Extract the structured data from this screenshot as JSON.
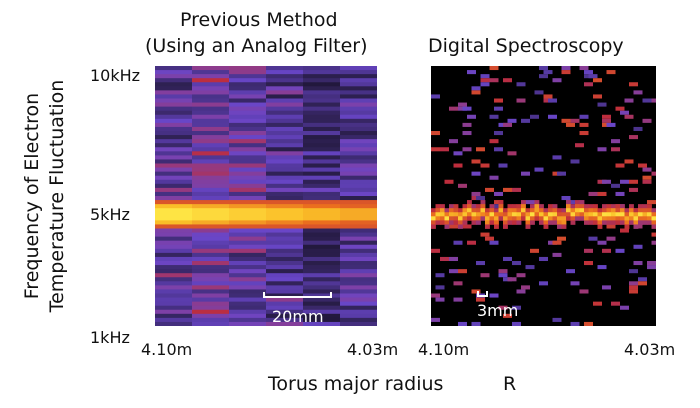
{
  "chart_data": [
    {
      "type": "heatmap",
      "title_lines": [
        "Previous Method",
        "(Using an Analog Filter)"
      ],
      "y_ticks": [
        "10kHz",
        "5kHz",
        "1kHz"
      ],
      "x_ticks": [
        "4.10m",
        "4.03m"
      ],
      "xlim": [
        4.1,
        4.03
      ],
      "scale_bar": "20mm",
      "peak_frequency_khz": 5,
      "columns": 6,
      "rows": 64
    },
    {
      "type": "heatmap",
      "title_lines": [
        "Digital Spectroscopy"
      ],
      "x_ticks": [
        "4.10m",
        "4.03m"
      ],
      "xlim": [
        4.1,
        4.03
      ],
      "scale_bar": "3mm",
      "peak_frequency_khz": 5,
      "columns": 50,
      "rows": 64
    }
  ],
  "y_axis_label_lines": [
    "Frequency of Electron",
    "Temperature Fluctuation"
  ],
  "x_axis_label": "Torus major radius",
  "x_axis_symbol": "R",
  "colors": {
    "background": "#000000",
    "low": "#2a1f4a",
    "mid": "#6b3fc4",
    "hot": "#e0282a",
    "peak": "#ffef40"
  }
}
